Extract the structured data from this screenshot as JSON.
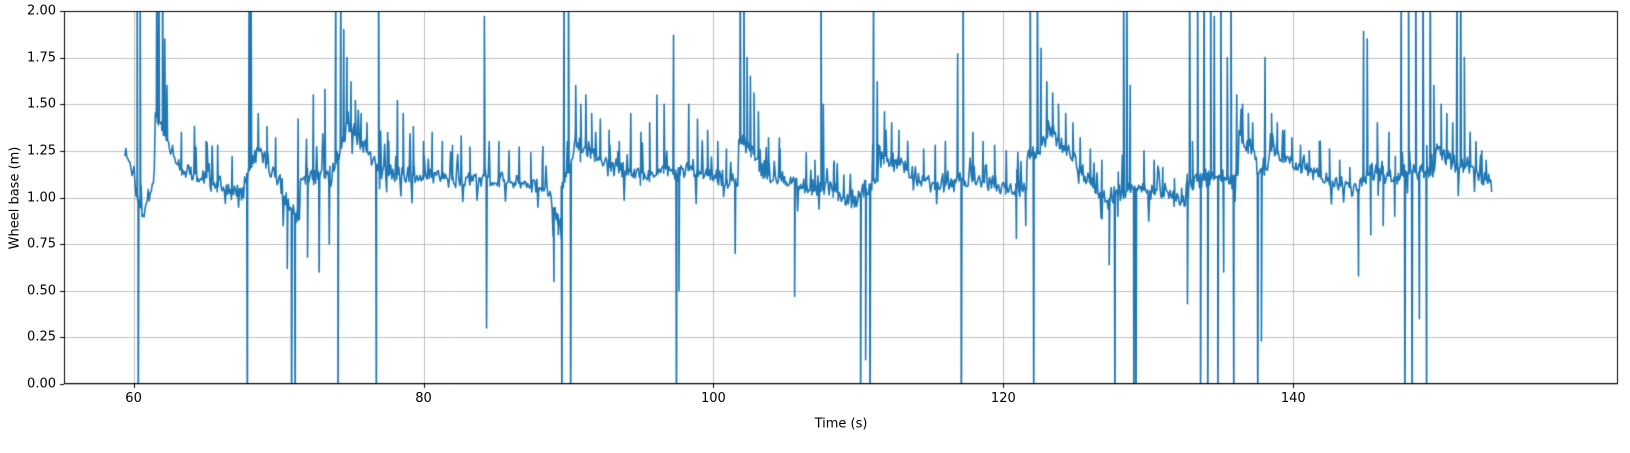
{
  "chart_data": {
    "type": "line",
    "title": "",
    "xlabel": "Time (s)",
    "ylabel": "Wheel base (m)",
    "xlim": [
      55.2,
      162.4
    ],
    "ylim": [
      0,
      2
    ],
    "xticks": {
      "values": [
        60,
        80,
        100,
        120,
        140
      ],
      "labels": [
        "60",
        "80",
        "100",
        "120",
        "140"
      ]
    },
    "yticks": {
      "values": [
        0,
        0.25,
        0.5,
        0.75,
        1.0,
        1.25,
        1.5,
        1.75,
        2.0
      ],
      "labels": [
        "0.00",
        "0.25",
        "0.50",
        "0.75",
        "1.00",
        "1.25",
        "1.50",
        "1.75",
        "2.00"
      ]
    },
    "grid": true,
    "grid_color": "#b0b0b0",
    "spine_color": "#000000",
    "line_color": "#1f77b4",
    "line_width": 1.6,
    "series_name": "wheel_base",
    "legend": null,
    "signal": {
      "t_start": 59.4,
      "t_end": 153.7,
      "dt": 0.07,
      "noise_amp": 0.045,
      "burst_up_p": 0.1,
      "burst_up_max": 0.2,
      "burst_dn_p": 0.05,
      "burst_dn_max": 0.16,
      "seed": 1337,
      "base_segments": [
        [
          59.4,
          60.1,
          1.25,
          1.1
        ],
        [
          60.1,
          60.6,
          1.05,
          0.9
        ],
        [
          60.6,
          61.5,
          0.88,
          1.15
        ],
        [
          61.5,
          63.0,
          1.45,
          1.18
        ],
        [
          63.0,
          66.0,
          1.16,
          1.08
        ],
        [
          66.0,
          67.5,
          1.06,
          1.0
        ],
        [
          67.5,
          68.4,
          1.05,
          1.25
        ],
        [
          68.4,
          70.3,
          1.28,
          1.05
        ],
        [
          70.3,
          71.5,
          1.0,
          0.88
        ],
        [
          71.5,
          73.8,
          1.12,
          1.1
        ],
        [
          73.8,
          74.5,
          1.18,
          1.3
        ],
        [
          74.5,
          77.0,
          1.42,
          1.15
        ],
        [
          77.0,
          84.0,
          1.14,
          1.08
        ],
        [
          84.0,
          88.8,
          1.12,
          1.04
        ],
        [
          88.8,
          89.5,
          1.0,
          0.8
        ],
        [
          89.5,
          90.4,
          1.05,
          1.2
        ],
        [
          90.4,
          93.0,
          1.32,
          1.15
        ],
        [
          93.0,
          96.5,
          1.15,
          1.12
        ],
        [
          96.5,
          97.6,
          1.18,
          1.1
        ],
        [
          97.6,
          101.7,
          1.16,
          1.08
        ],
        [
          101.7,
          103.2,
          1.32,
          1.2
        ],
        [
          103.2,
          107.2,
          1.14,
          1.05
        ],
        [
          107.2,
          109.9,
          1.08,
          0.97
        ],
        [
          109.9,
          111.4,
          1.0,
          1.12
        ],
        [
          111.4,
          114.0,
          1.24,
          1.12
        ],
        [
          114.0,
          116.7,
          1.1,
          1.06
        ],
        [
          116.7,
          117.5,
          1.12,
          1.08
        ],
        [
          117.5,
          121.6,
          1.1,
          1.04
        ],
        [
          121.6,
          123.0,
          1.2,
          1.32
        ],
        [
          123.0,
          125.5,
          1.38,
          1.15
        ],
        [
          125.5,
          127.6,
          1.12,
          0.95
        ],
        [
          127.6,
          129.3,
          1.02,
          1.05
        ],
        [
          129.3,
          132.6,
          1.05,
          0.97
        ],
        [
          132.6,
          136.2,
          1.08,
          1.12
        ],
        [
          136.2,
          137.5,
          1.32,
          1.24
        ],
        [
          137.5,
          138.3,
          1.12,
          1.18
        ],
        [
          138.3,
          141.5,
          1.28,
          1.12
        ],
        [
          141.5,
          144.4,
          1.12,
          1.04
        ],
        [
          144.4,
          145.4,
          1.02,
          1.18
        ],
        [
          145.4,
          147.4,
          1.14,
          1.1
        ],
        [
          147.4,
          149.8,
          1.12,
          1.15
        ],
        [
          149.8,
          151.2,
          1.25,
          1.18
        ],
        [
          151.2,
          152.0,
          1.18,
          1.15
        ],
        [
          152.0,
          153.7,
          1.18,
          1.07
        ]
      ],
      "spikes": [
        [
          60.25,
          2.3
        ],
        [
          60.32,
          -0.3
        ],
        [
          60.45,
          2.3
        ],
        [
          61.6,
          2.3
        ],
        [
          61.75,
          2.3
        ],
        [
          62.0,
          2.3
        ],
        [
          62.15,
          1.85
        ],
        [
          62.3,
          1.6
        ],
        [
          63.3,
          1.35
        ],
        [
          64.2,
          1.38
        ],
        [
          65.0,
          1.3
        ],
        [
          65.8,
          1.28
        ],
        [
          66.8,
          1.22
        ],
        [
          67.85,
          -0.3
        ],
        [
          67.97,
          2.3
        ],
        [
          68.1,
          2.3
        ],
        [
          68.6,
          1.45
        ],
        [
          69.2,
          1.38
        ],
        [
          69.8,
          1.32
        ],
        [
          70.6,
          0.62
        ],
        [
          70.9,
          -0.3
        ],
        [
          71.15,
          -0.3
        ],
        [
          71.35,
          1.42
        ],
        [
          72.0,
          0.68
        ],
        [
          72.4,
          1.55
        ],
        [
          72.8,
          0.6
        ],
        [
          73.2,
          1.58
        ],
        [
          73.5,
          0.75
        ],
        [
          73.95,
          2.3
        ],
        [
          74.1,
          -0.3
        ],
        [
          74.3,
          2.3
        ],
        [
          74.5,
          1.9
        ],
        [
          74.72,
          1.75
        ],
        [
          75.0,
          1.62
        ],
        [
          75.3,
          1.52
        ],
        [
          75.7,
          1.45
        ],
        [
          76.1,
          1.4
        ],
        [
          76.75,
          -0.3
        ],
        [
          76.9,
          2.3
        ],
        [
          77.6,
          1.3
        ],
        [
          78.2,
          1.52
        ],
        [
          78.6,
          1.45
        ],
        [
          79.3,
          1.38
        ],
        [
          80.0,
          1.3
        ],
        [
          80.6,
          1.35
        ],
        [
          81.3,
          1.3
        ],
        [
          82.0,
          1.28
        ],
        [
          82.6,
          1.33
        ],
        [
          83.2,
          1.27
        ],
        [
          84.2,
          1.97
        ],
        [
          84.35,
          0.3
        ],
        [
          85.2,
          1.3
        ],
        [
          85.9,
          1.25
        ],
        [
          86.6,
          1.27
        ],
        [
          87.4,
          1.24
        ],
        [
          88.2,
          1.2
        ],
        [
          89.0,
          0.55
        ],
        [
          89.3,
          0.8
        ],
        [
          89.55,
          -0.3
        ],
        [
          89.7,
          2.3
        ],
        [
          90.0,
          2.3
        ],
        [
          90.15,
          -0.3
        ],
        [
          90.5,
          1.6
        ],
        [
          90.85,
          1.5
        ],
        [
          91.2,
          1.55
        ],
        [
          91.6,
          1.45
        ],
        [
          92.2,
          1.42
        ],
        [
          92.8,
          1.36
        ],
        [
          93.5,
          1.3
        ],
        [
          94.3,
          1.45
        ],
        [
          95.0,
          1.35
        ],
        [
          95.6,
          1.4
        ],
        [
          96.1,
          1.55
        ],
        [
          96.6,
          1.5
        ],
        [
          97.25,
          1.87
        ],
        [
          97.45,
          -0.3
        ],
        [
          97.62,
          0.5
        ],
        [
          98.3,
          1.5
        ],
        [
          98.9,
          1.42
        ],
        [
          99.6,
          1.36
        ],
        [
          100.3,
          1.3
        ],
        [
          100.9,
          1.26
        ],
        [
          101.5,
          0.7
        ],
        [
          101.85,
          2.3
        ],
        [
          102.1,
          2.3
        ],
        [
          102.32,
          1.75
        ],
        [
          102.55,
          1.65
        ],
        [
          102.8,
          1.56
        ],
        [
          103.1,
          1.46
        ],
        [
          103.8,
          1.32
        ],
        [
          104.6,
          1.26
        ],
        [
          105.6,
          0.47
        ],
        [
          106.4,
          1.24
        ],
        [
          107.0,
          1.2
        ],
        [
          107.42,
          2.3
        ],
        [
          107.58,
          1.5
        ],
        [
          108.3,
          1.18
        ],
        [
          109.0,
          1.12
        ],
        [
          109.6,
          1.04
        ],
        [
          110.15,
          -0.3
        ],
        [
          110.5,
          0.13
        ],
        [
          110.8,
          -0.3
        ],
        [
          111.05,
          2.3
        ],
        [
          111.3,
          1.62
        ],
        [
          111.8,
          1.46
        ],
        [
          112.3,
          1.4
        ],
        [
          112.8,
          1.36
        ],
        [
          113.4,
          1.3
        ],
        [
          114.5,
          1.26
        ],
        [
          115.3,
          1.28
        ],
        [
          116.0,
          1.3
        ],
        [
          116.85,
          1.77
        ],
        [
          117.1,
          -0.3
        ],
        [
          117.22,
          2.3
        ],
        [
          117.9,
          1.35
        ],
        [
          118.6,
          1.3
        ],
        [
          119.4,
          1.28
        ],
        [
          120.2,
          1.25
        ],
        [
          120.9,
          0.78
        ],
        [
          121.55,
          0.85
        ],
        [
          121.85,
          2.3
        ],
        [
          122.1,
          -0.3
        ],
        [
          122.35,
          2.3
        ],
        [
          122.6,
          1.8
        ],
        [
          123.0,
          1.62
        ],
        [
          123.4,
          1.56
        ],
        [
          123.8,
          1.5
        ],
        [
          124.3,
          1.45
        ],
        [
          124.8,
          1.4
        ],
        [
          125.3,
          1.32
        ],
        [
          126.0,
          1.26
        ],
        [
          126.8,
          1.2
        ],
        [
          127.3,
          0.64
        ],
        [
          127.7,
          -0.3
        ],
        [
          127.9,
          0.9
        ],
        [
          128.3,
          2.3
        ],
        [
          128.52,
          2.3
        ],
        [
          128.75,
          1.6
        ],
        [
          129.0,
          -0.3
        ],
        [
          129.15,
          -0.3
        ],
        [
          129.7,
          1.25
        ],
        [
          130.4,
          1.2
        ],
        [
          131.0,
          1.16
        ],
        [
          131.8,
          1.1
        ],
        [
          132.3,
          1.05
        ],
        [
          132.7,
          0.43
        ],
        [
          132.85,
          2.3
        ],
        [
          133.05,
          1.3
        ],
        [
          133.4,
          2.3
        ],
        [
          133.6,
          -0.3
        ],
        [
          133.85,
          2.3
        ],
        [
          134.1,
          -0.3
        ],
        [
          134.3,
          2.3
        ],
        [
          134.55,
          1.97
        ],
        [
          134.8,
          -0.3
        ],
        [
          135.0,
          2.3
        ],
        [
          135.2,
          0.6
        ],
        [
          135.45,
          1.75
        ],
        [
          135.7,
          2.3
        ],
        [
          135.9,
          -0.3
        ],
        [
          136.1,
          1.55
        ],
        [
          136.5,
          1.5
        ],
        [
          136.9,
          1.45
        ],
        [
          137.2,
          1.4
        ],
        [
          137.55,
          -0.3
        ],
        [
          137.8,
          0.23
        ],
        [
          138.05,
          1.75
        ],
        [
          138.5,
          1.45
        ],
        [
          138.9,
          1.4
        ],
        [
          139.4,
          1.36
        ],
        [
          139.9,
          1.32
        ],
        [
          140.5,
          1.28
        ],
        [
          141.1,
          1.25
        ],
        [
          141.8,
          1.3
        ],
        [
          142.5,
          1.26
        ],
        [
          143.2,
          1.2
        ],
        [
          143.9,
          1.16
        ],
        [
          144.5,
          0.58
        ],
        [
          144.85,
          1.89
        ],
        [
          145.1,
          1.85
        ],
        [
          145.35,
          0.8
        ],
        [
          145.8,
          1.4
        ],
        [
          146.2,
          0.85
        ],
        [
          146.6,
          1.35
        ],
        [
          147.0,
          0.9
        ],
        [
          147.45,
          2.3
        ],
        [
          147.7,
          -0.3
        ],
        [
          147.95,
          2.3
        ],
        [
          148.2,
          -0.3
        ],
        [
          148.45,
          2.3
        ],
        [
          148.7,
          0.35
        ],
        [
          148.95,
          2.3
        ],
        [
          149.2,
          -0.3
        ],
        [
          149.45,
          2.3
        ],
        [
          149.7,
          1.6
        ],
        [
          150.2,
          1.5
        ],
        [
          150.6,
          1.45
        ],
        [
          151.0,
          1.4
        ],
        [
          151.3,
          2.3
        ],
        [
          151.55,
          2.3
        ],
        [
          151.8,
          1.75
        ],
        [
          152.2,
          1.35
        ],
        [
          152.6,
          1.3
        ],
        [
          153.0,
          1.25
        ],
        [
          153.3,
          1.2
        ]
      ]
    }
  }
}
